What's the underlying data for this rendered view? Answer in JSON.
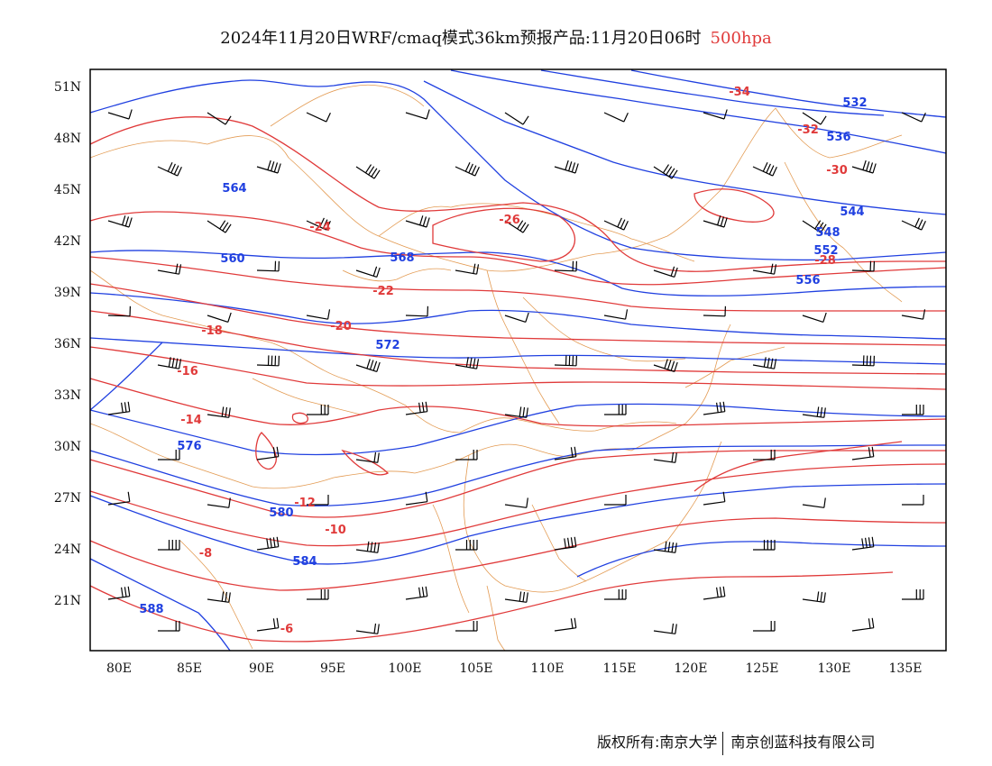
{
  "title": {
    "main": "2024年11月20日WRF/cmaq模式36km预报产品:11月20日06时",
    "level": "500hpa"
  },
  "colors": {
    "temperature": "#e03a3a",
    "geopotential": "#2040e0",
    "borders": "#e09040",
    "wind": "#000000",
    "frame": "#000000"
  },
  "map": {
    "lon_range": [
      78,
      138
    ],
    "lat_range": [
      18,
      52
    ],
    "lon_ticks": [
      "80E",
      "85E",
      "90E",
      "95E",
      "100E",
      "105E",
      "110E",
      "115E",
      "120E",
      "125E",
      "130E",
      "135E"
    ],
    "lat_ticks": [
      "51N",
      "48N",
      "45N",
      "42N",
      "39N",
      "36N",
      "33N",
      "30N",
      "27N",
      "24N",
      "21N"
    ],
    "legend": {
      "height_labels": [
        "532",
        "536",
        "544",
        "548",
        "552",
        "556",
        "560",
        "564",
        "568",
        "572",
        "576",
        "580",
        "584",
        "588"
      ],
      "temperature_labels": [
        "-34",
        "-32",
        "-30",
        "-28",
        "-26",
        "-24",
        "-22",
        "-20",
        "-18",
        "-16",
        "-14",
        "-12",
        "-10",
        "-8",
        "-6"
      ]
    }
  },
  "footer": {
    "left": "版权所有:南京大学",
    "right": "南京创蓝科技有限公司"
  }
}
